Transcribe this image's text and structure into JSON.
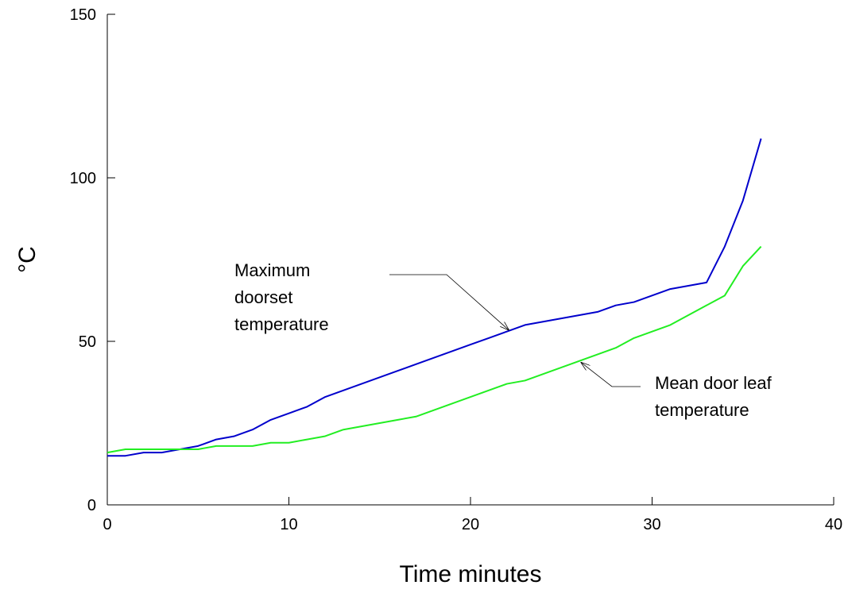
{
  "chart_data": {
    "type": "line",
    "title": "",
    "xlabel": "Time minutes",
    "ylabel": "°C",
    "xlim": [
      0,
      40
    ],
    "ylim": [
      0,
      150
    ],
    "xticks": [
      0,
      10,
      20,
      30,
      40
    ],
    "yticks": [
      0,
      50,
      100,
      150
    ],
    "grid": false,
    "legend": "none",
    "series": [
      {
        "label": "Maximum doorset temperature",
        "color": "#0000cc",
        "x": [
          0,
          1,
          2,
          3,
          4,
          5,
          6,
          7,
          8,
          9,
          10,
          11,
          12,
          13,
          14,
          15,
          16,
          17,
          18,
          19,
          20,
          21,
          22,
          23,
          24,
          25,
          26,
          27,
          28,
          29,
          30,
          31,
          32,
          33,
          34,
          35,
          36
        ],
        "y": [
          15,
          15,
          16,
          16,
          17,
          18,
          20,
          21,
          23,
          26,
          28,
          30,
          33,
          35,
          37,
          39,
          41,
          43,
          45,
          47,
          49,
          51,
          53,
          55,
          56,
          57,
          58,
          59,
          61,
          62,
          64,
          66,
          67,
          68,
          79,
          93,
          112
        ]
      },
      {
        "label": "Mean door leaf temperature",
        "color": "#22ee22",
        "x": [
          0,
          1,
          2,
          3,
          4,
          5,
          6,
          7,
          8,
          9,
          10,
          11,
          12,
          13,
          14,
          15,
          16,
          17,
          18,
          19,
          20,
          21,
          22,
          23,
          24,
          25,
          26,
          27,
          28,
          29,
          30,
          31,
          32,
          33,
          34,
          35,
          36
        ],
        "y": [
          16,
          17,
          17,
          17,
          17,
          17,
          18,
          18,
          18,
          19,
          19,
          20,
          21,
          23,
          24,
          25,
          26,
          27,
          29,
          31,
          33,
          35,
          37,
          38,
          40,
          42,
          44,
          46,
          48,
          51,
          53,
          55,
          58,
          61,
          64,
          73,
          79
        ]
      }
    ],
    "annotations": [
      {
        "lines": [
          "Maximum",
          "doorset",
          "temperature"
        ],
        "series": 0
      },
      {
        "lines": [
          "Mean door leaf",
          "temperature"
        ],
        "series": 1
      }
    ]
  }
}
